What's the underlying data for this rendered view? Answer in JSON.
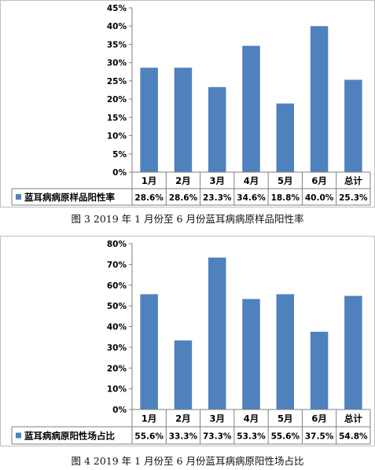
{
  "chart_data": [
    {
      "type": "bar",
      "categories": [
        "1月",
        "2月",
        "3月",
        "4月",
        "5月",
        "6月",
        "总计"
      ],
      "series": [
        {
          "name": "蓝耳病病原样品阳性率",
          "values": [
            28.6,
            28.6,
            23.3,
            34.6,
            18.8,
            40.0,
            25.3
          ]
        }
      ],
      "value_labels": [
        "28.6%",
        "28.6%",
        "23.3%",
        "34.6%",
        "18.8%",
        "40.0%",
        "25.3%"
      ],
      "y_ticks": [
        "0%",
        "5%",
        "10%",
        "15%",
        "20%",
        "25%",
        "30%",
        "35%",
        "40%",
        "45%"
      ],
      "ylim": [
        0,
        45
      ],
      "legend": "bottom data table",
      "bar_color": "#4f81bd"
    },
    {
      "type": "bar",
      "categories": [
        "1月",
        "2月",
        "3月",
        "4月",
        "5月",
        "6月",
        "总计"
      ],
      "series": [
        {
          "name": "蓝耳病病原阳性场占比",
          "values": [
            55.6,
            33.3,
            73.3,
            53.3,
            55.6,
            37.5,
            54.8
          ]
        }
      ],
      "value_labels": [
        "55.6%",
        "33.3%",
        "73.3%",
        "53.3%",
        "55.6%",
        "37.5%",
        "54.8%"
      ],
      "y_ticks": [
        "0%",
        "10%",
        "20%",
        "30%",
        "40%",
        "50%",
        "60%",
        "70%",
        "80%"
      ],
      "ylim": [
        0,
        80
      ],
      "legend": "bottom data table",
      "bar_color": "#4f81bd"
    }
  ],
  "captions": [
    "图 3 2019 年 1 月份至 6 月份蓝耳病病原样品阳性率",
    "图 4 2019 年 1 月份至 6 月份蓝耳病病原阳性场占比"
  ]
}
